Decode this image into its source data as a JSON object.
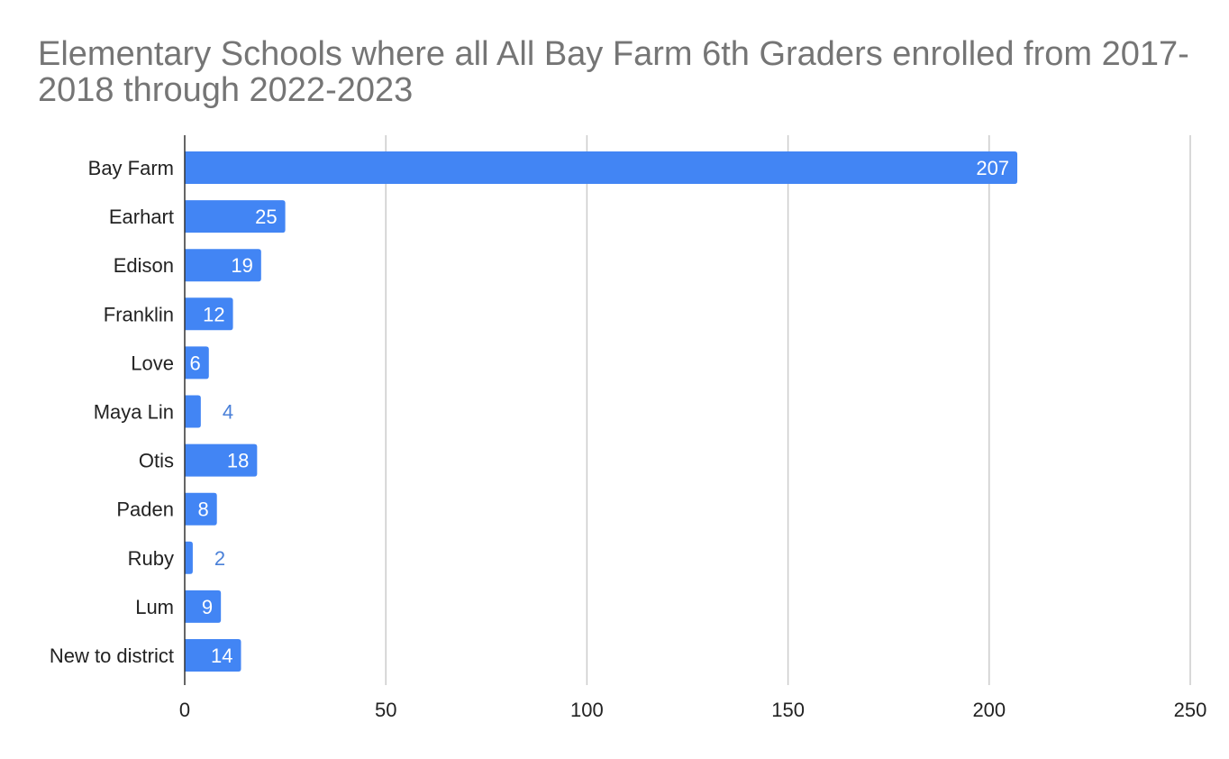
{
  "chart_data": {
    "type": "bar",
    "orientation": "horizontal",
    "title": "Elementary Schools where all All Bay Farm 6th Graders enrolled from 2017-2018 through 2022-2023",
    "xlabel": "",
    "ylabel": "",
    "categories": [
      "Bay Farm",
      "Earhart",
      "Edison",
      "Franklin",
      "Love",
      "Maya Lin",
      "Otis",
      "Paden",
      "Ruby",
      "Lum",
      "New to district"
    ],
    "values": [
      207,
      25,
      19,
      12,
      6,
      4,
      18,
      8,
      2,
      9,
      14
    ],
    "xlim": [
      0,
      250
    ],
    "xticks": [
      0,
      50,
      100,
      150,
      200,
      250
    ],
    "grid": true,
    "legend": "none",
    "bar_color": "#4285f4"
  }
}
